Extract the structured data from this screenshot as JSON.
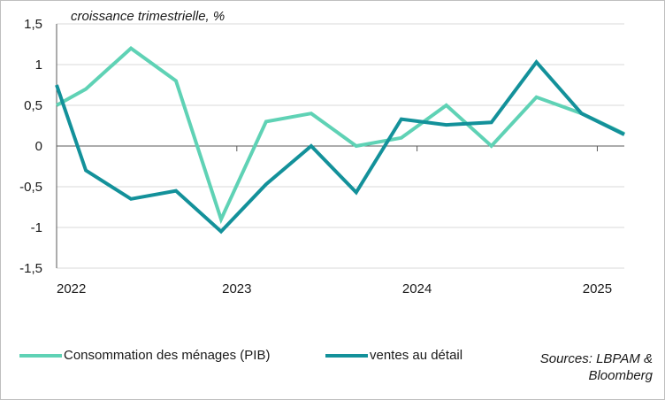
{
  "chart_data": {
    "type": "line",
    "ylabel": "croissance trimestrielle, %",
    "ylim": [
      -1.5,
      1.5
    ],
    "yticks": [
      1.5,
      1,
      0.5,
      0,
      -0.5,
      -1,
      -1.5
    ],
    "ytick_labels": [
      "1,5",
      "1",
      "0,5",
      "0",
      "-0,5",
      "-1",
      "-1,5"
    ],
    "xticks": [
      "2022",
      "2023",
      "2024",
      "2025"
    ],
    "xlim": [
      0,
      12.6
    ],
    "grid": true,
    "series": [
      {
        "name": "Consommation des ménages (PIB)",
        "color": "#5fd2b5",
        "x": [
          0,
          0.65,
          1.65,
          2.65,
          3.65,
          4.65,
          5.65,
          6.65,
          7.65,
          8.65,
          9.65,
          10.65,
          11.65,
          12.6
        ],
        "values": [
          0.5,
          0.7,
          1.2,
          0.8,
          -0.9,
          0.3,
          0.4,
          0.0,
          0.1,
          0.5,
          0.0,
          0.6,
          0.4,
          0.15
        ]
      },
      {
        "name": "ventes au détail",
        "color": "#13919a",
        "x": [
          0,
          0.65,
          1.65,
          2.65,
          3.65,
          4.65,
          5.65,
          6.65,
          7.65,
          8.65,
          9.65,
          10.65,
          11.65,
          12.6
        ],
        "values": [
          0.75,
          -0.3,
          -0.65,
          -0.55,
          -1.05,
          -0.47,
          0.0,
          -0.57,
          0.33,
          0.26,
          0.29,
          1.03,
          0.4,
          0.14
        ]
      }
    ]
  },
  "legend": {
    "item1": "Consommation des ménages (PIB)",
    "item2": "ventes au détail"
  },
  "sources": {
    "line1": "Sources: LBPAM &",
    "line2": "Bloomberg"
  }
}
